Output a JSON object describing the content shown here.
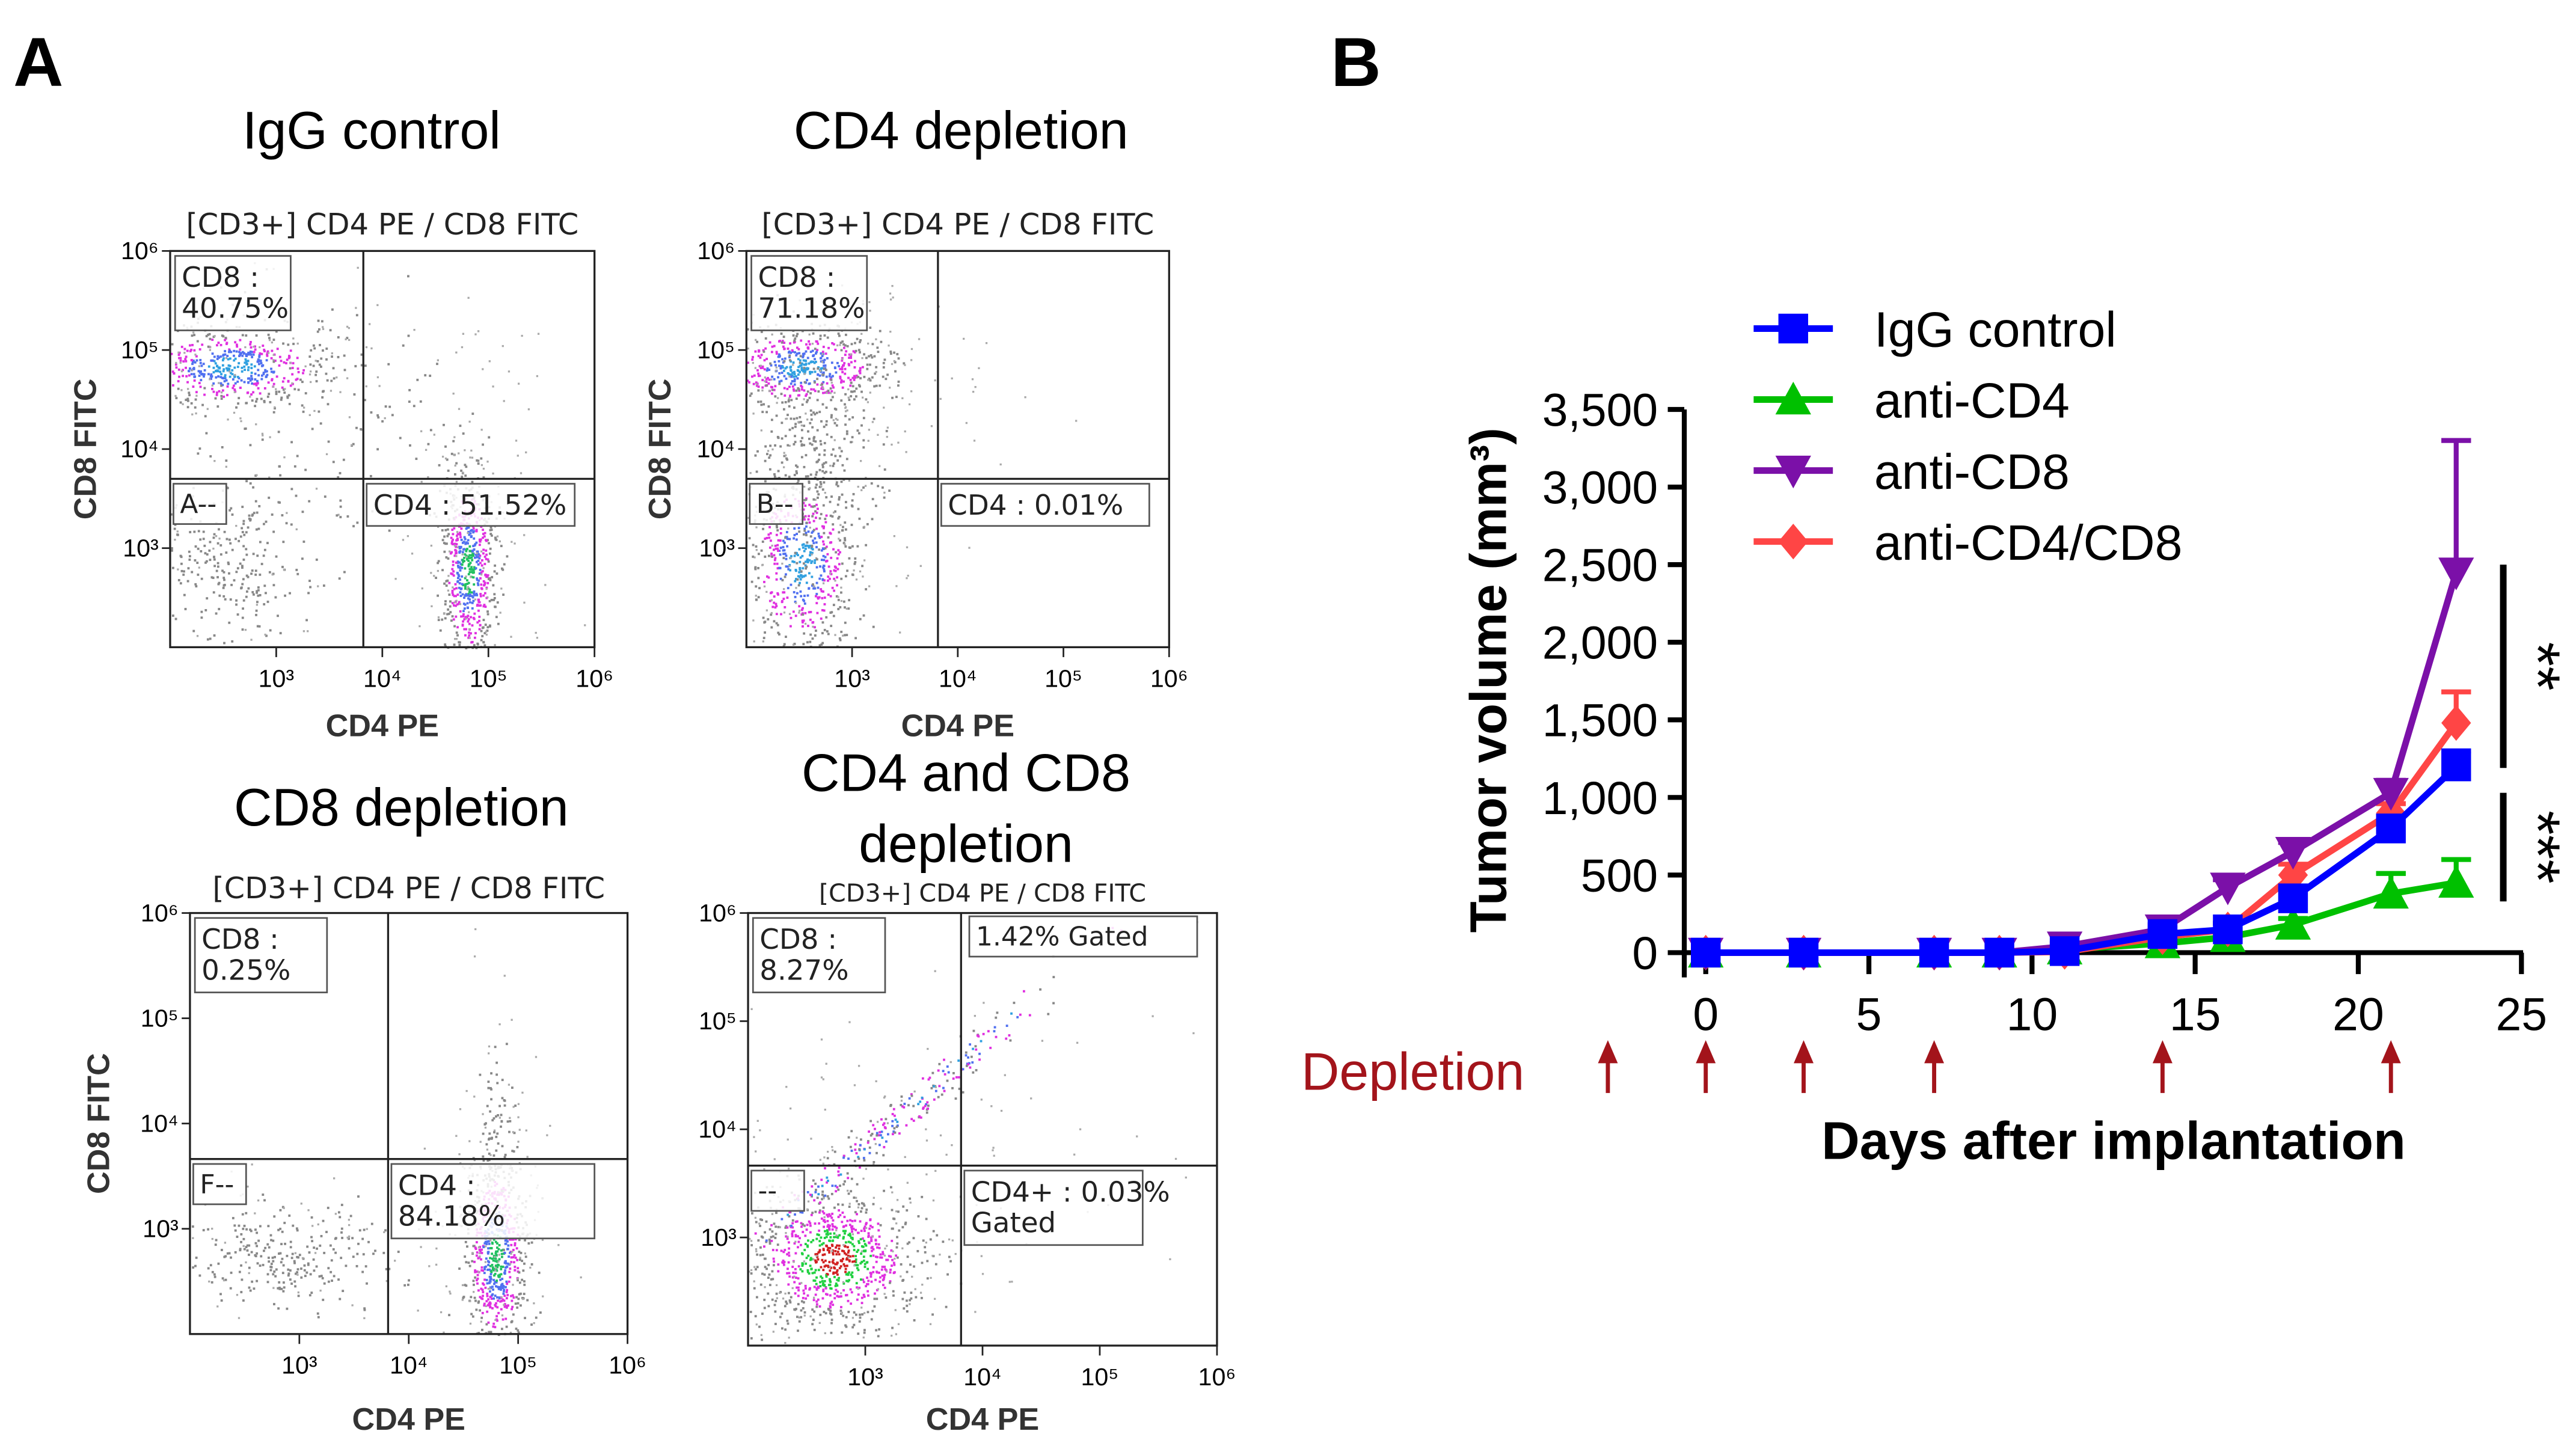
{
  "panel_labels": {
    "a": "A",
    "b": "B"
  },
  "flow_panels": [
    {
      "title": [
        "IgG control"
      ],
      "subtitle": "[CD3+] CD4 PE / CD8 FITC",
      "xlabel": "CD4 PE",
      "ylabel": "CD8 FITC",
      "gates": {
        "ul": [
          "CD8 :",
          "40.75%"
        ],
        "ll": [
          "A--"
        ],
        "lr": [
          "CD4 : 51.52%"
        ],
        "ur": []
      }
    },
    {
      "title": [
        "CD4 depletion"
      ],
      "subtitle": "[CD3+] CD4 PE / CD8 FITC",
      "xlabel": "CD4 PE",
      "ylabel": "CD8 FITC",
      "gates": {
        "ul": [
          "CD8 :",
          "71.18%"
        ],
        "ll": [
          "B--"
        ],
        "lr": [
          "CD4 : 0.01%"
        ],
        "ur": []
      }
    },
    {
      "title": [
        "CD8 depletion"
      ],
      "subtitle": "[CD3+] CD4 PE / CD8 FITC",
      "xlabel": "CD4 PE",
      "ylabel": "CD8 FITC",
      "gates": {
        "ul": [
          "CD8 :",
          "0.25%"
        ],
        "ll": [
          "F--"
        ],
        "lr": [
          "CD4 :",
          "84.18%"
        ],
        "ur": []
      }
    },
    {
      "title": [
        "CD4 and CD8",
        "depletion"
      ],
      "subtitle": "[CD3+] CD4 PE / CD8 FITC",
      "xlabel": "CD4 PE",
      "ylabel": "",
      "gates": {
        "ul": [
          "CD8 :",
          "8.27%"
        ],
        "ll": [
          "--"
        ],
        "lr": [
          "CD4+ : 0.03%",
          "Gated"
        ],
        "ur": [
          "1.42% Gated"
        ]
      }
    }
  ],
  "flow_axis_ticks": {
    "x": [
      "10³",
      "10⁴",
      "10⁵",
      "10⁶"
    ],
    "y": [
      "10⁶",
      "10⁵",
      "10⁴",
      "10³"
    ]
  },
  "chart_data": {
    "type": "line",
    "xlabel": "Days after implantation",
    "ylabel": "Tumor volume (mm³)",
    "xlim": [
      0,
      25
    ],
    "ylim": [
      0,
      3500
    ],
    "xticks": [
      0,
      5,
      10,
      15,
      20,
      25
    ],
    "yticks": [
      0,
      500,
      1000,
      1500,
      2000,
      2500,
      3000,
      3500
    ],
    "ytick_labels": [
      "0",
      "500",
      "1,000",
      "1,500",
      "2,000",
      "2,500",
      "3,000",
      "3,500"
    ],
    "grid": false,
    "legend_placement": "top-left",
    "x": [
      0,
      3,
      7,
      9,
      11,
      14,
      16,
      18,
      21,
      23
    ],
    "series": [
      {
        "name": "IgG control",
        "color": "#0000ff",
        "marker": "square",
        "values": [
          0,
          0,
          0,
          0,
          10,
          120,
          150,
          350,
          800,
          1200
        ],
        "error": [
          0,
          0,
          0,
          0,
          10,
          30,
          40,
          60,
          80,
          100
        ]
      },
      {
        "name": "anti-CD4",
        "color": "#00c000",
        "marker": "triangle-up",
        "values": [
          0,
          0,
          0,
          0,
          20,
          60,
          100,
          180,
          380,
          450
        ],
        "error": [
          0,
          0,
          0,
          0,
          10,
          20,
          30,
          40,
          130,
          150
        ]
      },
      {
        "name": "anti-CD8",
        "color": "#7b10a8",
        "marker": "triangle-down",
        "values": [
          0,
          0,
          0,
          0,
          40,
          150,
          420,
          650,
          1030,
          2450
        ],
        "error": [
          0,
          0,
          0,
          0,
          20,
          30,
          50,
          60,
          80,
          850
        ]
      },
      {
        "name": "anti-CD4/CD8",
        "color": "#ff4545",
        "marker": "diamond",
        "values": [
          0,
          0,
          0,
          0,
          5,
          100,
          150,
          500,
          900,
          1480
        ],
        "error": [
          0,
          0,
          0,
          0,
          10,
          30,
          40,
          70,
          60,
          200
        ]
      }
    ],
    "significance": [
      {
        "label": "**",
        "range": [
          1190,
          2500
        ]
      },
      {
        "label": "***",
        "range": [
          330,
          1030
        ]
      }
    ],
    "depletion": {
      "label": "Depletion",
      "days": [
        -3,
        0,
        3,
        7,
        14,
        21
      ],
      "color": "#a3141b"
    }
  }
}
